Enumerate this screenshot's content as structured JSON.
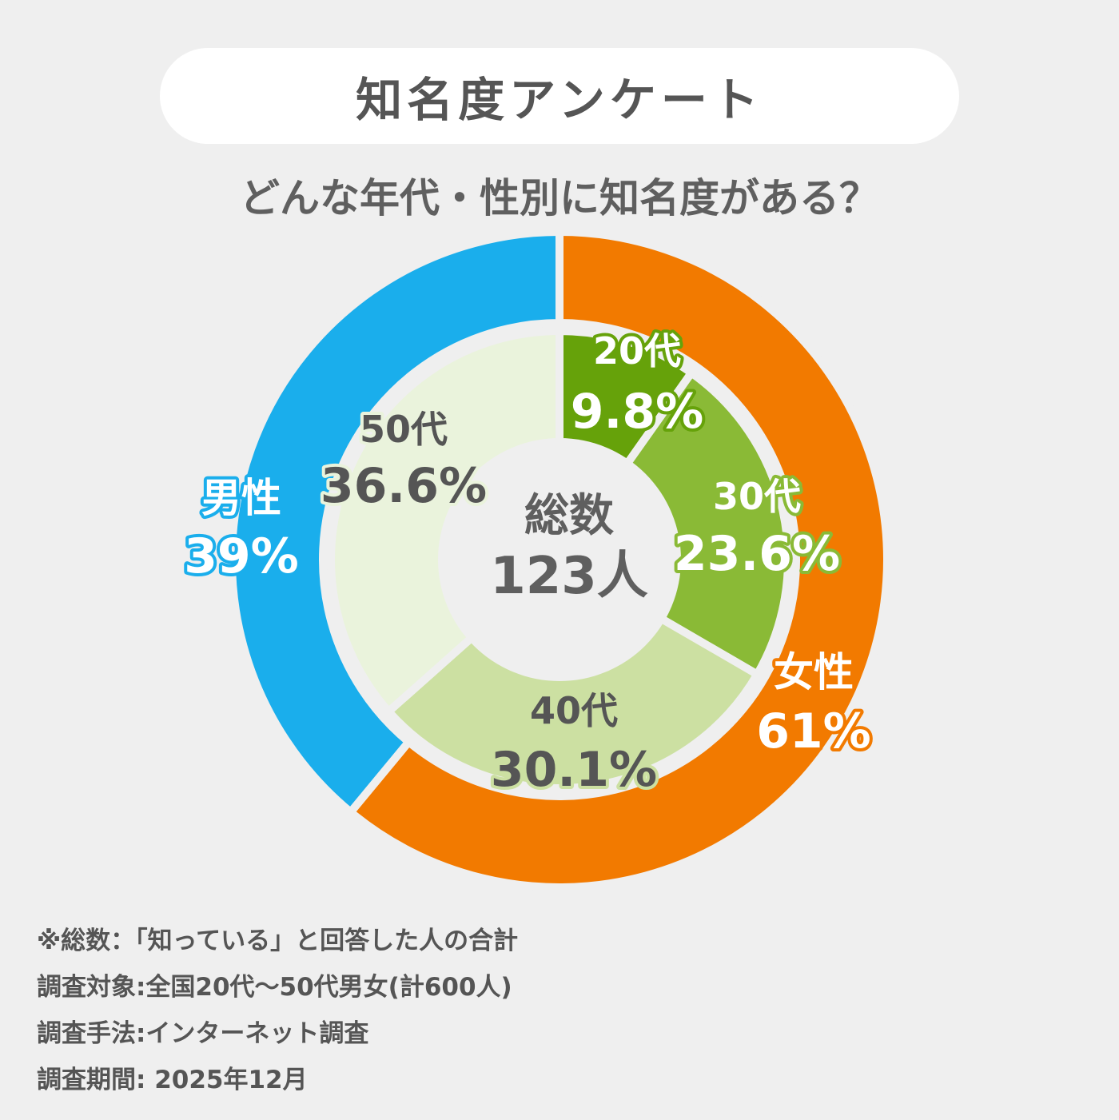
{
  "header": {
    "title": "知名度アンケート",
    "subtitle": "どんな年代・性別に知名度がある？"
  },
  "chart_data": {
    "type": "pie",
    "center": {
      "line1": "総数",
      "line2": "123人"
    },
    "outer": [
      {
        "label": "女性",
        "value": 61,
        "value_text": "61%",
        "color": "#f27a00"
      },
      {
        "label": "男性",
        "value": 39,
        "value_text": "39%",
        "color": "#1aaeec"
      }
    ],
    "inner": [
      {
        "label": "20代",
        "value": 9.8,
        "value_text": "9.8%",
        "color": "#66a20a"
      },
      {
        "label": "30代",
        "value": 23.6,
        "value_text": "23.6%",
        "color": "#8aba36"
      },
      {
        "label": "40代",
        "value": 30.1,
        "value_text": "30.1%",
        "color": "#cce0a2"
      },
      {
        "label": "50代",
        "value": 36.6,
        "value_text": "36.6%",
        "color": "#eaf3dc"
      }
    ]
  },
  "notes": [
    "※総数：「知っている」と回答した人の合計",
    "調査対象:全国20代～50代男女(計600人)",
    "調査手法:インターネット調査",
    "調査期間: 2025年12月"
  ]
}
